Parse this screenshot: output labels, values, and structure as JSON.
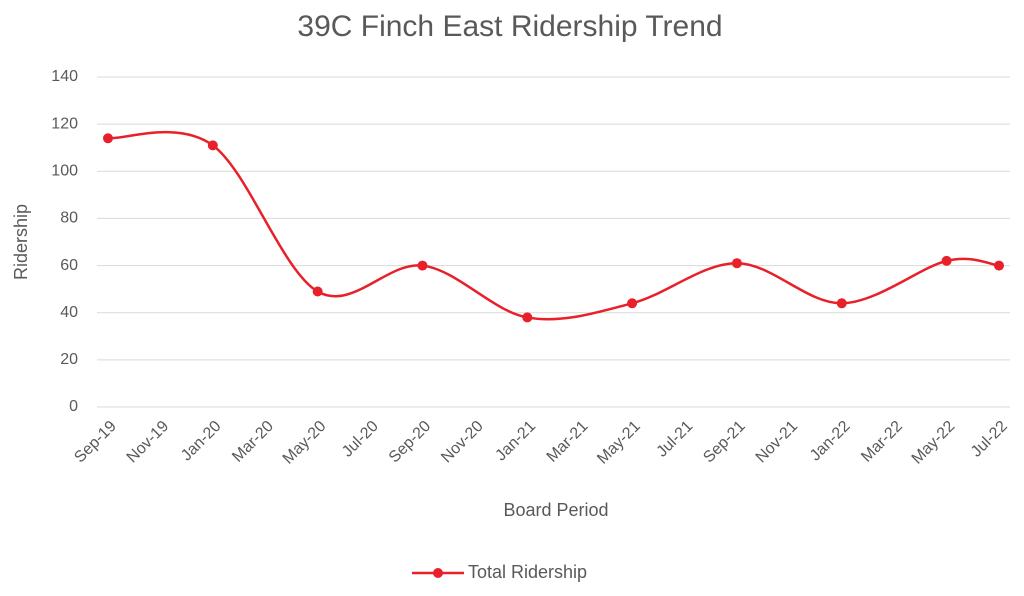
{
  "chart_data": {
    "type": "line",
    "title": "39C Finch East Ridership Trend",
    "x_label": "Board Period",
    "y_label": "Ridership",
    "categories": [
      "Sep-19",
      "Nov-19",
      "Jan-20",
      "Mar-20",
      "May-20",
      "Jul-20",
      "Sep-20",
      "Nov-20",
      "Jan-21",
      "Mar-21",
      "May-21",
      "Jul-21",
      "Sep-21",
      "Nov-21",
      "Jan-22",
      "Mar-22",
      "May-22",
      "Jul-22"
    ],
    "series": [
      {
        "name": "Total Ridership",
        "color": "#e8202a",
        "values": [
          114,
          null,
          111,
          null,
          49,
          null,
          60,
          null,
          38,
          null,
          44,
          null,
          61,
          null,
          44,
          null,
          62,
          60
        ]
      }
    ],
    "connect_gaps": true,
    "smooth": true,
    "ylim": [
      0,
      140
    ],
    "yticks": [
      0,
      20,
      40,
      60,
      80,
      100,
      120,
      140
    ],
    "grid": true,
    "legend": "bottom"
  }
}
